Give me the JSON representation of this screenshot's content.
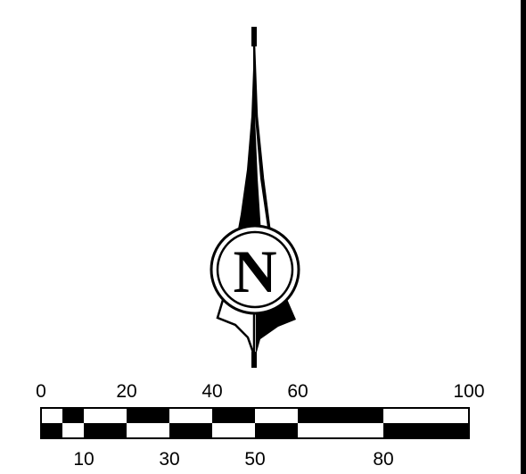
{
  "north_arrow": {
    "letter": "N"
  },
  "scale_bar": {
    "top_labels": [
      {
        "value": 0,
        "text": "0"
      },
      {
        "value": 20,
        "text": "20"
      },
      {
        "value": 40,
        "text": "40"
      },
      {
        "value": 60,
        "text": "60"
      },
      {
        "value": 100,
        "text": "100"
      }
    ],
    "bottom_labels": [
      {
        "value": 10,
        "text": "10"
      },
      {
        "value": 30,
        "text": "30"
      },
      {
        "value": 50,
        "text": "50"
      },
      {
        "value": 80,
        "text": "80"
      }
    ],
    "segments_top_row": [
      {
        "from": 0,
        "to": 5,
        "fill": "white"
      },
      {
        "from": 5,
        "to": 10,
        "fill": "black"
      },
      {
        "from": 10,
        "to": 20,
        "fill": "white"
      },
      {
        "from": 20,
        "to": 30,
        "fill": "black"
      },
      {
        "from": 30,
        "to": 40,
        "fill": "white"
      },
      {
        "from": 40,
        "to": 50,
        "fill": "black"
      },
      {
        "from": 50,
        "to": 60,
        "fill": "white"
      },
      {
        "from": 60,
        "to": 80,
        "fill": "black"
      },
      {
        "from": 80,
        "to": 100,
        "fill": "white"
      }
    ],
    "segments_bottom_row": [
      {
        "from": 0,
        "to": 5,
        "fill": "black"
      },
      {
        "from": 5,
        "to": 10,
        "fill": "white"
      },
      {
        "from": 10,
        "to": 20,
        "fill": "black"
      },
      {
        "from": 20,
        "to": 30,
        "fill": "white"
      },
      {
        "from": 30,
        "to": 40,
        "fill": "black"
      },
      {
        "from": 40,
        "to": 50,
        "fill": "white"
      },
      {
        "from": 50,
        "to": 60,
        "fill": "black"
      },
      {
        "from": 60,
        "to": 80,
        "fill": "white"
      },
      {
        "from": 80,
        "to": 100,
        "fill": "black"
      }
    ]
  },
  "colors": {
    "ink": "#000000",
    "paper": "#ffffff"
  }
}
